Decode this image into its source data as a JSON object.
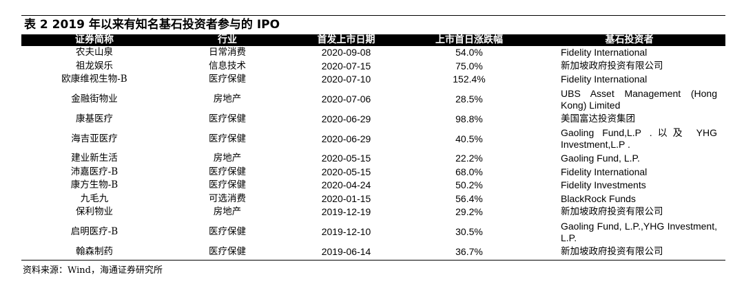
{
  "title": "表 2 2019 年以来有知名基石投资者参与的 IPO",
  "headers": [
    "证券简称",
    "行业",
    "首发上市日期",
    "上市首日涨跌幅",
    "基石投资者"
  ],
  "rows": [
    {
      "name": "农夫山泉",
      "industry": "日常消费",
      "date": "2020-09-08",
      "change": "54.0%",
      "investor": "Fidelity International"
    },
    {
      "name": "祖龙娱乐",
      "industry": "信息技术",
      "date": "2020-07-15",
      "change": "75.0%",
      "investor": "新加坡政府投资有限公司"
    },
    {
      "name": "欧康维视生物-B",
      "industry": "医疗保健",
      "date": "2020-07-10",
      "change": "152.4%",
      "investor": "Fidelity International"
    },
    {
      "name": "金融街物业",
      "industry": "房地产",
      "date": "2020-07-06",
      "change": "28.5%",
      "investor": "UBS Asset Management (Hong Kong) Limited"
    },
    {
      "name": "康基医疗",
      "industry": "医疗保健",
      "date": "2020-06-29",
      "change": "98.8%",
      "investor": "美国富达投资集团"
    },
    {
      "name": "海吉亚医疗",
      "industry": "医疗保健",
      "date": "2020-06-29",
      "change": "40.5%",
      "investor": "Gaoling Fund,L.P .以及 YHG Investment,L.P ."
    },
    {
      "name": "建业新生活",
      "industry": "房地产",
      "date": "2020-05-15",
      "change": "22.2%",
      "investor": "Gaoling Fund, L.P."
    },
    {
      "name": "沛嘉医疗-B",
      "industry": "医疗保健",
      "date": "2020-05-15",
      "change": "68.0%",
      "investor": "Fidelity International"
    },
    {
      "name": "康方生物-B",
      "industry": "医疗保健",
      "date": "2020-04-24",
      "change": "50.2%",
      "investor": "Fidelity Investments"
    },
    {
      "name": "九毛九",
      "industry": "可选消费",
      "date": "2020-01-15",
      "change": "56.4%",
      "investor": "BlackRock Funds"
    },
    {
      "name": "保利物业",
      "industry": "房地产",
      "date": "2019-12-19",
      "change": "29.2%",
      "investor": "新加坡政府投资有限公司"
    },
    {
      "name": "启明医疗-B",
      "industry": "医疗保健",
      "date": "2019-12-10",
      "change": "30.5%",
      "investor": "Gaoling Fund, L.P.,YHG Investment, L.P."
    },
    {
      "name": "翰森制药",
      "industry": "医疗保健",
      "date": "2019-06-14",
      "change": "36.7%",
      "investor": "新加坡政府投资有限公司"
    }
  ],
  "source": "资料来源：Wind，海通证券研究所"
}
